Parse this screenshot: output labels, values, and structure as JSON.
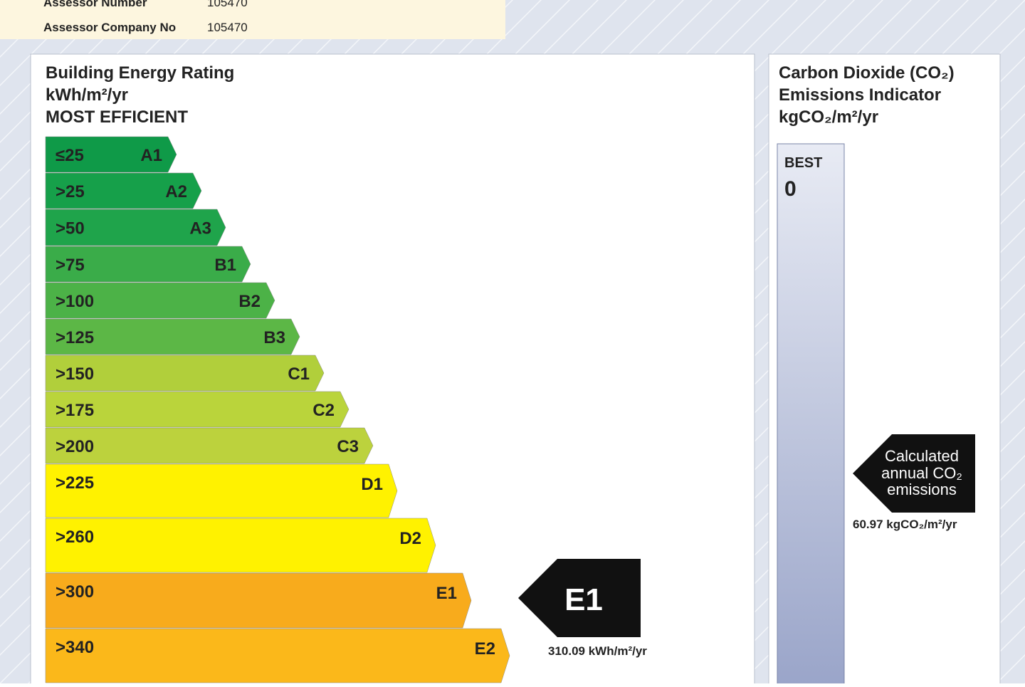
{
  "header": {
    "rows": [
      {
        "label": "Assessor Number",
        "value": "105470"
      },
      {
        "label": "Assessor Company No",
        "value": "105470"
      }
    ]
  },
  "energy_rating": {
    "title": [
      "Building Energy Rating",
      "kWh/m²/yr",
      "MOST EFFICIENT"
    ],
    "bands": [
      {
        "threshold": "≤25",
        "grade": "A1",
        "color": "#0f9a48"
      },
      {
        "threshold": ">25",
        "grade": "A2",
        "color": "#16a04a"
      },
      {
        "threshold": ">50",
        "grade": "A3",
        "color": "#1fa44b"
      },
      {
        "threshold": ">75",
        "grade": "B1",
        "color": "#3aac49"
      },
      {
        "threshold": ">100",
        "grade": "B2",
        "color": "#4cb247"
      },
      {
        "threshold": ">125",
        "grade": "B3",
        "color": "#5cb746"
      },
      {
        "threshold": ">150",
        "grade": "C1",
        "color": "#b1cf3b"
      },
      {
        "threshold": ">175",
        "grade": "C2",
        "color": "#bad43b"
      },
      {
        "threshold": ">200",
        "grade": "C3",
        "color": "#bcd23d"
      },
      {
        "threshold": ">225",
        "grade": "D1",
        "color": "#fff200"
      },
      {
        "threshold": ">260",
        "grade": "D2",
        "color": "#fff200"
      },
      {
        "threshold": ">300",
        "grade": "E1",
        "color": "#f8ab1c"
      },
      {
        "threshold": ">340",
        "grade": "E2",
        "color": "#fbb81a"
      }
    ],
    "indicator": {
      "grade": "E1",
      "value": "310.09 kWh/m²/yr"
    }
  },
  "co2": {
    "title": [
      "Carbon Dioxide (CO₂)",
      "Emissions Indicator",
      "kgCO₂/m²/yr"
    ],
    "best_label": "BEST",
    "best_value": "0",
    "indicator": {
      "text": [
        "Calculated",
        "annual CO₂",
        "emissions"
      ],
      "value": "60.97 kgCO₂/m²/yr"
    }
  }
}
